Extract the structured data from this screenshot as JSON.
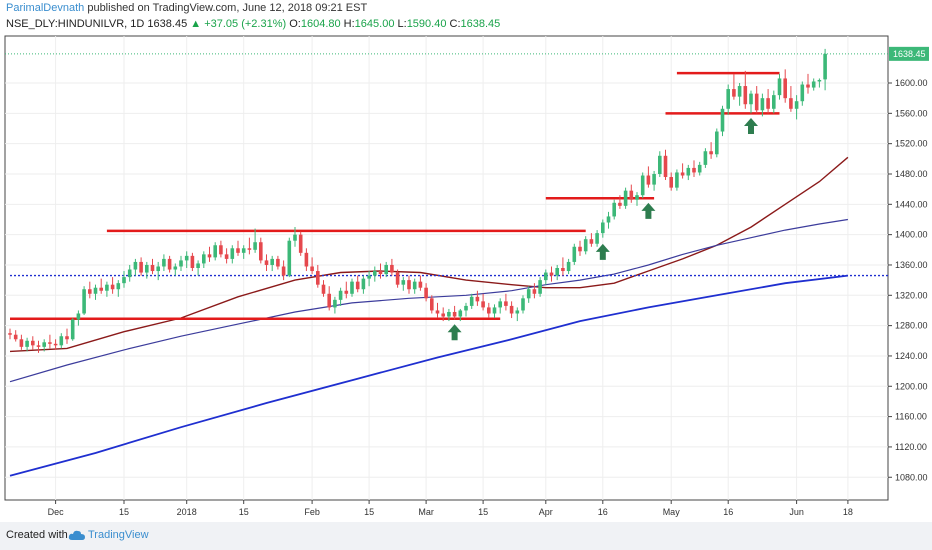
{
  "header": {
    "author": "ParimalDevnath",
    "published_text": "published on TradingView.com, June 12, 2018 09:21 EST",
    "symbol": "NSE_DLY:HINDUNILVR, 1D",
    "last": "1638.45",
    "change": "+37.05 (+2.31%)",
    "open_label": "O:",
    "open": "1604.80",
    "high_label": "H:",
    "high": "1645.00",
    "low_label": "L:",
    "low": "1590.40",
    "close_label": "C:",
    "close": "1638.45"
  },
  "footer": {
    "created_with": "Created with",
    "brand": "TradingView"
  },
  "colors": {
    "up": "#3cb878",
    "down": "#e5484d",
    "sma_short": "#8b1a1a",
    "sma_mid": "#3c3c9c",
    "sma_long": "#1f2fd0",
    "hline": "#e31b1b",
    "arrow": "#2e7d4f",
    "price_tag": "#3cb878"
  },
  "chart_data": {
    "type": "candlestick",
    "last_price_label": "1638.45",
    "y_ticks": [
      1080,
      1120,
      1160,
      1200,
      1240,
      1280,
      1320,
      1360,
      1400,
      1440,
      1480,
      1520,
      1560,
      1600
    ],
    "ylim": [
      1050,
      1662
    ],
    "x_ticks": [
      {
        "label": "Dec",
        "i": 8
      },
      {
        "label": "15",
        "i": 20
      },
      {
        "label": "2018",
        "i": 31
      },
      {
        "label": "15",
        "i": 41
      },
      {
        "label": "Feb",
        "i": 53
      },
      {
        "label": "15",
        "i": 63
      },
      {
        "label": "Mar",
        "i": 73
      },
      {
        "label": "15",
        "i": 83
      },
      {
        "label": "Apr",
        "i": 94
      },
      {
        "label": "16",
        "i": 104
      },
      {
        "label": "May",
        "i": 116
      },
      {
        "label": "16",
        "i": 126
      },
      {
        "label": "Jun",
        "i": 138
      },
      {
        "label": "18",
        "i": 147
      }
    ],
    "n_bars": 148,
    "candles": [
      [
        1270,
        1276,
        1262,
        1268
      ],
      [
        1268,
        1274,
        1259,
        1262
      ],
      [
        1262,
        1268,
        1248,
        1252
      ],
      [
        1252,
        1264,
        1246,
        1260
      ],
      [
        1260,
        1266,
        1248,
        1254
      ],
      [
        1254,
        1260,
        1244,
        1252
      ],
      [
        1252,
        1262,
        1246,
        1258
      ],
      [
        1258,
        1268,
        1250,
        1256
      ],
      [
        1256,
        1262,
        1248,
        1254
      ],
      [
        1254,
        1270,
        1250,
        1266
      ],
      [
        1266,
        1276,
        1256,
        1262
      ],
      [
        1262,
        1290,
        1260,
        1288
      ],
      [
        1288,
        1300,
        1280,
        1296
      ],
      [
        1296,
        1332,
        1294,
        1328
      ],
      [
        1328,
        1338,
        1316,
        1322
      ],
      [
        1322,
        1334,
        1314,
        1330
      ],
      [
        1330,
        1342,
        1322,
        1326
      ],
      [
        1326,
        1338,
        1318,
        1334
      ],
      [
        1334,
        1344,
        1322,
        1328
      ],
      [
        1328,
        1340,
        1318,
        1336
      ],
      [
        1336,
        1352,
        1330,
        1344
      ],
      [
        1344,
        1360,
        1338,
        1354
      ],
      [
        1354,
        1368,
        1346,
        1364
      ],
      [
        1364,
        1370,
        1346,
        1350
      ],
      [
        1350,
        1364,
        1342,
        1360
      ],
      [
        1360,
        1368,
        1348,
        1352
      ],
      [
        1352,
        1364,
        1340,
        1358
      ],
      [
        1358,
        1374,
        1352,
        1368
      ],
      [
        1368,
        1372,
        1350,
        1354
      ],
      [
        1354,
        1362,
        1346,
        1358
      ],
      [
        1358,
        1372,
        1352,
        1366
      ],
      [
        1366,
        1378,
        1356,
        1372
      ],
      [
        1372,
        1376,
        1352,
        1356
      ],
      [
        1356,
        1366,
        1346,
        1362
      ],
      [
        1362,
        1378,
        1356,
        1374
      ],
      [
        1374,
        1384,
        1364,
        1370
      ],
      [
        1370,
        1390,
        1366,
        1386
      ],
      [
        1386,
        1392,
        1370,
        1374
      ],
      [
        1374,
        1382,
        1362,
        1368
      ],
      [
        1368,
        1386,
        1362,
        1382
      ],
      [
        1382,
        1392,
        1372,
        1376
      ],
      [
        1376,
        1386,
        1368,
        1382
      ],
      [
        1382,
        1396,
        1374,
        1380
      ],
      [
        1380,
        1408,
        1376,
        1390
      ],
      [
        1390,
        1396,
        1362,
        1366
      ],
      [
        1366,
        1374,
        1352,
        1360
      ],
      [
        1360,
        1372,
        1352,
        1368
      ],
      [
        1368,
        1372,
        1354,
        1358
      ],
      [
        1358,
        1366,
        1340,
        1346
      ],
      [
        1346,
        1396,
        1344,
        1392
      ],
      [
        1392,
        1410,
        1384,
        1400
      ],
      [
        1400,
        1404,
        1372,
        1376
      ],
      [
        1376,
        1382,
        1352,
        1358
      ],
      [
        1358,
        1370,
        1348,
        1352
      ],
      [
        1352,
        1360,
        1330,
        1334
      ],
      [
        1334,
        1340,
        1318,
        1322
      ],
      [
        1322,
        1332,
        1300,
        1304
      ],
      [
        1304,
        1318,
        1296,
        1314
      ],
      [
        1314,
        1330,
        1306,
        1326
      ],
      [
        1326,
        1338,
        1316,
        1322
      ],
      [
        1322,
        1342,
        1318,
        1338
      ],
      [
        1338,
        1346,
        1324,
        1328
      ],
      [
        1328,
        1346,
        1322,
        1342
      ],
      [
        1342,
        1352,
        1332,
        1346
      ],
      [
        1346,
        1358,
        1338,
        1352
      ],
      [
        1352,
        1362,
        1342,
        1348
      ],
      [
        1348,
        1364,
        1344,
        1360
      ],
      [
        1360,
        1368,
        1346,
        1350
      ],
      [
        1350,
        1354,
        1330,
        1334
      ],
      [
        1334,
        1344,
        1326,
        1340
      ],
      [
        1340,
        1346,
        1322,
        1328
      ],
      [
        1328,
        1342,
        1322,
        1338
      ],
      [
        1338,
        1346,
        1326,
        1330
      ],
      [
        1330,
        1336,
        1312,
        1316
      ],
      [
        1316,
        1320,
        1296,
        1300
      ],
      [
        1300,
        1310,
        1290,
        1296
      ],
      [
        1296,
        1304,
        1286,
        1292
      ],
      [
        1292,
        1302,
        1286,
        1298
      ],
      [
        1298,
        1306,
        1288,
        1292
      ],
      [
        1292,
        1302,
        1286,
        1300
      ],
      [
        1300,
        1310,
        1292,
        1306
      ],
      [
        1306,
        1322,
        1302,
        1318
      ],
      [
        1318,
        1326,
        1306,
        1312
      ],
      [
        1312,
        1322,
        1300,
        1304
      ],
      [
        1304,
        1310,
        1290,
        1296
      ],
      [
        1296,
        1308,
        1290,
        1304
      ],
      [
        1304,
        1316,
        1296,
        1312
      ],
      [
        1312,
        1322,
        1300,
        1306
      ],
      [
        1306,
        1312,
        1290,
        1296
      ],
      [
        1296,
        1304,
        1286,
        1300
      ],
      [
        1300,
        1320,
        1296,
        1316
      ],
      [
        1316,
        1332,
        1310,
        1328
      ],
      [
        1328,
        1336,
        1316,
        1322
      ],
      [
        1322,
        1344,
        1318,
        1340
      ],
      [
        1340,
        1354,
        1334,
        1350
      ],
      [
        1350,
        1358,
        1338,
        1346
      ],
      [
        1346,
        1360,
        1340,
        1356
      ],
      [
        1356,
        1370,
        1346,
        1352
      ],
      [
        1352,
        1368,
        1348,
        1364
      ],
      [
        1364,
        1388,
        1360,
        1384
      ],
      [
        1384,
        1392,
        1372,
        1378
      ],
      [
        1378,
        1398,
        1374,
        1394
      ],
      [
        1394,
        1402,
        1384,
        1388
      ],
      [
        1388,
        1406,
        1384,
        1402
      ],
      [
        1402,
        1420,
        1396,
        1416
      ],
      [
        1416,
        1430,
        1408,
        1424
      ],
      [
        1424,
        1446,
        1420,
        1442
      ],
      [
        1442,
        1452,
        1434,
        1438
      ],
      [
        1438,
        1462,
        1434,
        1458
      ],
      [
        1458,
        1466,
        1442,
        1446
      ],
      [
        1446,
        1456,
        1438,
        1452
      ],
      [
        1452,
        1482,
        1448,
        1478
      ],
      [
        1478,
        1490,
        1462,
        1466
      ],
      [
        1466,
        1484,
        1458,
        1480
      ],
      [
        1480,
        1510,
        1476,
        1504
      ],
      [
        1504,
        1512,
        1472,
        1476
      ],
      [
        1476,
        1482,
        1458,
        1462
      ],
      [
        1462,
        1486,
        1458,
        1482
      ],
      [
        1482,
        1494,
        1474,
        1478
      ],
      [
        1478,
        1492,
        1472,
        1488
      ],
      [
        1488,
        1498,
        1476,
        1482
      ],
      [
        1482,
        1496,
        1478,
        1492
      ],
      [
        1492,
        1514,
        1488,
        1510
      ],
      [
        1510,
        1522,
        1500,
        1506
      ],
      [
        1506,
        1540,
        1502,
        1536
      ],
      [
        1536,
        1570,
        1530,
        1566
      ],
      [
        1566,
        1598,
        1558,
        1592
      ],
      [
        1592,
        1612,
        1578,
        1582
      ],
      [
        1582,
        1600,
        1570,
        1596
      ],
      [
        1596,
        1616,
        1566,
        1572
      ],
      [
        1572,
        1590,
        1560,
        1586
      ],
      [
        1586,
        1596,
        1560,
        1564
      ],
      [
        1564,
        1586,
        1556,
        1580
      ],
      [
        1580,
        1592,
        1560,
        1566
      ],
      [
        1566,
        1590,
        1560,
        1584
      ],
      [
        1584,
        1612,
        1578,
        1606
      ],
      [
        1606,
        1618,
        1574,
        1580
      ],
      [
        1580,
        1596,
        1562,
        1566
      ],
      [
        1566,
        1584,
        1552,
        1576
      ],
      [
        1576,
        1602,
        1570,
        1598
      ],
      [
        1598,
        1612,
        1586,
        1594
      ],
      [
        1594,
        1606,
        1590,
        1602
      ],
      [
        1602,
        1606,
        1594,
        1604
      ],
      [
        1604.8,
        1645,
        1590.4,
        1638.45
      ]
    ],
    "sma_short": [
      [
        0,
        1246
      ],
      [
        10,
        1250
      ],
      [
        20,
        1272
      ],
      [
        30,
        1290
      ],
      [
        40,
        1318
      ],
      [
        50,
        1340
      ],
      [
        58,
        1350
      ],
      [
        65,
        1352
      ],
      [
        72,
        1350
      ],
      [
        80,
        1340
      ],
      [
        88,
        1334
      ],
      [
        94,
        1330
      ],
      [
        100,
        1330
      ],
      [
        106,
        1336
      ],
      [
        112,
        1352
      ],
      [
        118,
        1368
      ],
      [
        124,
        1386
      ],
      [
        130,
        1410
      ],
      [
        136,
        1440
      ],
      [
        142,
        1470
      ],
      [
        147,
        1502
      ]
    ],
    "sma_mid": [
      [
        0,
        1206
      ],
      [
        10,
        1228
      ],
      [
        20,
        1248
      ],
      [
        30,
        1266
      ],
      [
        40,
        1282
      ],
      [
        50,
        1298
      ],
      [
        60,
        1310
      ],
      [
        70,
        1316
      ],
      [
        80,
        1320
      ],
      [
        88,
        1326
      ],
      [
        94,
        1334
      ],
      [
        100,
        1340
      ],
      [
        106,
        1348
      ],
      [
        112,
        1360
      ],
      [
        118,
        1374
      ],
      [
        124,
        1386
      ],
      [
        130,
        1396
      ],
      [
        136,
        1406
      ],
      [
        142,
        1414
      ],
      [
        147,
        1420
      ]
    ],
    "sma_long": [
      [
        0,
        1082
      ],
      [
        15,
        1112
      ],
      [
        30,
        1146
      ],
      [
        45,
        1178
      ],
      [
        60,
        1208
      ],
      [
        75,
        1238
      ],
      [
        88,
        1262
      ],
      [
        100,
        1286
      ],
      [
        112,
        1304
      ],
      [
        124,
        1320
      ],
      [
        136,
        1336
      ],
      [
        147,
        1346
      ]
    ],
    "hlines": [
      {
        "i0": 0,
        "i1": 106,
        "y": 1346,
        "style": "dotted-blue"
      },
      {
        "i0": 0,
        "i1": 86,
        "y": 1289,
        "style": "red"
      },
      {
        "i0": 17,
        "i1": 101,
        "y": 1405,
        "style": "red"
      },
      {
        "i0": 94,
        "i1": 113,
        "y": 1448,
        "style": "red"
      },
      {
        "i0": 115,
        "i1": 135,
        "y": 1560,
        "style": "red"
      },
      {
        "i0": 117,
        "i1": 135,
        "y": 1613,
        "style": "red"
      }
    ],
    "arrows": [
      {
        "i": 78,
        "y": 1270
      },
      {
        "i": 104,
        "y": 1376
      },
      {
        "i": 112,
        "y": 1430
      },
      {
        "i": 130,
        "y": 1542
      }
    ]
  }
}
